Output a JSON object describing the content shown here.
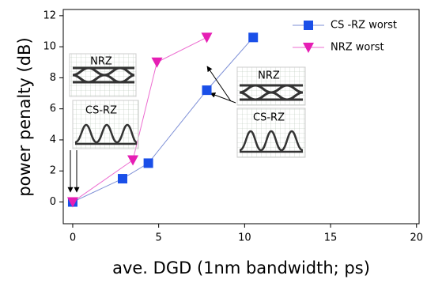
{
  "chart_data": {
    "type": "line",
    "x_label": "ave. DGD (1nm bandwidth; ps)",
    "y_label": "power penalty (dB)",
    "xlim": [
      -0.55,
      20.15
    ],
    "xticks": [
      0,
      5,
      10,
      15,
      20
    ],
    "ylim": [
      -1.4,
      12.4
    ],
    "yticks": [
      0,
      2,
      4,
      6,
      8,
      10,
      12
    ],
    "series": [
      {
        "name": "CS -RZ worst",
        "color": "#1a4fe8",
        "line_color": "#7d8fd6",
        "marker": "square",
        "x": [
          0,
          2.9,
          4.4,
          7.8,
          10.5
        ],
        "values": [
          0,
          1.5,
          2.5,
          7.2,
          10.6
        ]
      },
      {
        "name": "NRZ worst",
        "color": "#e61eb4",
        "line_color": "#ec6cd0",
        "marker": "triangle",
        "x": [
          0,
          3.5,
          4.9,
          7.8
        ],
        "values": [
          0,
          2.7,
          9.0,
          10.6
        ]
      }
    ],
    "annotations": [
      "NRZ",
      "CS-RZ",
      "NRZ",
      "CS-RZ"
    ]
  }
}
